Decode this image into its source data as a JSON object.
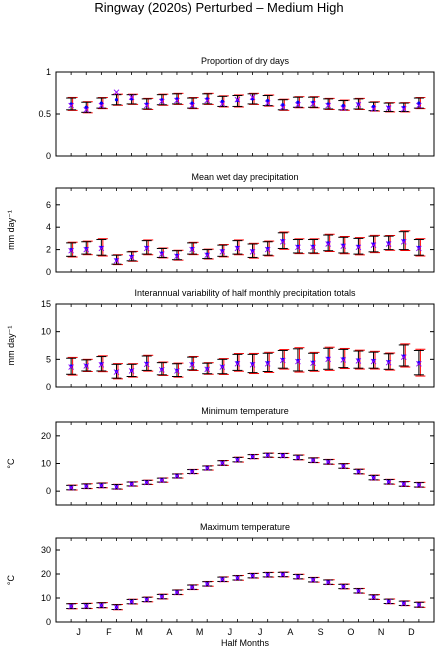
{
  "figure": {
    "title": "Ringway (2020s) Perturbed – Medium High"
  },
  "x_axis": {
    "label": "Half Months",
    "month_labels": [
      "J",
      "F",
      "M",
      "A",
      "M",
      "J",
      "J",
      "A",
      "S",
      "O",
      "N",
      "D"
    ]
  },
  "colors": {
    "observed": "#000000",
    "model": "#ff0000",
    "mean_marker": "#0000ff",
    "cross_marker": "#8b00ff"
  },
  "chart_data": [
    {
      "type": "errorbar",
      "title": "Proportion of dry days",
      "ylabel": "",
      "ylim": [
        0,
        1
      ],
      "yticks": [
        0,
        0.5,
        1
      ],
      "yticklabels": [
        "0",
        "0.5",
        "1"
      ],
      "x": [
        1,
        2,
        3,
        4,
        5,
        6,
        7,
        8,
        9,
        10,
        11,
        12,
        13,
        14,
        15,
        16,
        17,
        18,
        19,
        20,
        21,
        22,
        23,
        24
      ],
      "series": [
        {
          "values": [
            0.62,
            0.58,
            0.63,
            0.67,
            0.68,
            0.62,
            0.67,
            0.68,
            0.63,
            0.68,
            0.65,
            0.66,
            0.68,
            0.66,
            0.61,
            0.64,
            0.64,
            0.62,
            0.6,
            0.62,
            0.59,
            0.58,
            0.58,
            0.63
          ],
          "lower": [
            0.55,
            0.52,
            0.57,
            0.61,
            0.62,
            0.56,
            0.61,
            0.62,
            0.57,
            0.62,
            0.59,
            0.59,
            0.62,
            0.6,
            0.55,
            0.58,
            0.58,
            0.56,
            0.55,
            0.56,
            0.54,
            0.53,
            0.53,
            0.57
          ],
          "upper": [
            0.69,
            0.64,
            0.69,
            0.73,
            0.73,
            0.68,
            0.73,
            0.74,
            0.69,
            0.74,
            0.71,
            0.72,
            0.74,
            0.72,
            0.67,
            0.7,
            0.7,
            0.68,
            0.66,
            0.68,
            0.64,
            0.63,
            0.63,
            0.69
          ]
        }
      ],
      "crosses": [
        0.6,
        0.55,
        0.6,
        0.76,
        0.7,
        0.6,
        0.65,
        0.66,
        0.6,
        0.66,
        0.62,
        0.67,
        0.7,
        0.63,
        0.58,
        0.61,
        0.62,
        0.6,
        0.57,
        0.61,
        0.56,
        0.57,
        0.56,
        0.6
      ]
    },
    {
      "type": "errorbar",
      "title": "Mean wet day precipitation",
      "ylabel": "mm day⁻¹",
      "ylim": [
        0,
        7.5
      ],
      "yticks": [
        0,
        2,
        4,
        6
      ],
      "yticklabels": [
        "0",
        "2",
        "4",
        "6"
      ],
      "x": [
        1,
        2,
        3,
        4,
        5,
        6,
        7,
        8,
        9,
        10,
        11,
        12,
        13,
        14,
        15,
        16,
        17,
        18,
        19,
        20,
        21,
        22,
        23,
        24
      ],
      "series": [
        {
          "values": [
            2.0,
            2.1,
            2.2,
            1.1,
            1.4,
            2.2,
            1.7,
            1.5,
            2.1,
            1.6,
            1.9,
            2.2,
            1.9,
            2.1,
            2.8,
            2.3,
            2.3,
            2.6,
            2.4,
            2.3,
            2.5,
            2.6,
            2.8,
            2.2
          ],
          "lower": [
            1.4,
            1.6,
            1.5,
            0.7,
            1.0,
            1.6,
            1.3,
            1.1,
            1.6,
            1.2,
            1.4,
            1.6,
            1.3,
            1.5,
            2.1,
            1.7,
            1.7,
            1.9,
            1.7,
            1.6,
            1.8,
            2.0,
            2.0,
            1.5
          ],
          "upper": [
            2.6,
            2.7,
            2.9,
            1.5,
            1.8,
            2.8,
            2.1,
            1.9,
            2.6,
            2.0,
            2.4,
            2.8,
            2.5,
            2.7,
            3.5,
            2.9,
            2.9,
            3.3,
            3.1,
            3.0,
            3.2,
            3.2,
            3.6,
            2.9
          ]
        }
      ],
      "crosses": [
        1.9,
        2.0,
        2.1,
        1.0,
        1.3,
        2.1,
        1.6,
        1.4,
        2.0,
        1.5,
        1.8,
        2.1,
        1.8,
        2.0,
        2.7,
        2.2,
        2.2,
        2.5,
        2.3,
        2.2,
        2.4,
        2.5,
        2.7,
        2.1
      ]
    },
    {
      "type": "errorbar",
      "title": "Interannual variability of half monthly precipitation totals",
      "ylabel": "mm day⁻¹",
      "ylim": [
        0,
        15
      ],
      "yticks": [
        0,
        5,
        10,
        15
      ],
      "yticklabels": [
        "0",
        "5",
        "10",
        "15"
      ],
      "x": [
        1,
        2,
        3,
        4,
        5,
        6,
        7,
        8,
        9,
        10,
        11,
        12,
        13,
        14,
        15,
        16,
        17,
        18,
        19,
        20,
        21,
        22,
        23,
        24
      ],
      "series": [
        {
          "values": [
            3.8,
            3.9,
            4.2,
            2.8,
            3.0,
            4.3,
            3.2,
            3.0,
            4.2,
            3.3,
            3.7,
            4.4,
            4.2,
            4.4,
            5.0,
            4.8,
            4.5,
            5.2,
            5.1,
            4.9,
            4.8,
            4.6,
            5.6,
            4.4
          ],
          "lower": [
            2.3,
            2.9,
            2.9,
            1.6,
            1.9,
            3.0,
            2.2,
            1.9,
            3.1,
            2.4,
            2.4,
            3.0,
            2.6,
            2.8,
            3.4,
            2.9,
            3.0,
            3.2,
            3.5,
            3.4,
            3.4,
            3.2,
            3.8,
            2.2
          ],
          "upper": [
            5.2,
            4.9,
            5.5,
            4.1,
            4.1,
            5.6,
            4.4,
            4.2,
            5.4,
            4.3,
            5.0,
            5.9,
            5.9,
            6.1,
            6.6,
            6.9,
            6.1,
            7.0,
            6.8,
            6.5,
            6.3,
            6.0,
            7.6,
            6.6
          ]
        }
      ],
      "crosses": [
        3.6,
        3.8,
        4.0,
        2.7,
        2.9,
        4.1,
        3.1,
        2.9,
        4.0,
        3.2,
        3.6,
        4.2,
        4.0,
        4.2,
        4.8,
        4.6,
        4.3,
        5.0,
        4.9,
        4.7,
        4.6,
        4.4,
        5.4,
        4.2
      ]
    },
    {
      "type": "errorbar",
      "title": "Minimum temperature",
      "ylabel": "°C",
      "ylim": [
        -5,
        25
      ],
      "yticks": [
        0,
        10,
        20
      ],
      "yticklabels": [
        "0",
        "10",
        "20"
      ],
      "x": [
        1,
        2,
        3,
        4,
        5,
        6,
        7,
        8,
        9,
        10,
        11,
        12,
        13,
        14,
        15,
        16,
        17,
        18,
        19,
        20,
        21,
        22,
        23,
        24
      ],
      "series": [
        {
          "values": [
            1.3,
            1.8,
            2.1,
            1.6,
            2.6,
            3.2,
            4.0,
            5.5,
            7.1,
            8.4,
            10.2,
            11.4,
            12.5,
            13.0,
            12.9,
            12.2,
            11.2,
            10.6,
            9.1,
            7.1,
            4.9,
            3.4,
            2.6,
            2.3
          ],
          "lower": [
            0.5,
            1.0,
            1.3,
            0.8,
            1.9,
            2.5,
            3.3,
            4.8,
            6.4,
            7.7,
            9.4,
            10.6,
            11.8,
            12.3,
            12.2,
            11.4,
            10.4,
            9.8,
            8.3,
            6.3,
            4.1,
            2.6,
            1.8,
            1.5
          ],
          "upper": [
            2.1,
            2.6,
            2.9,
            2.4,
            3.3,
            3.9,
            4.7,
            6.2,
            7.8,
            9.1,
            11.0,
            12.2,
            13.2,
            13.7,
            13.6,
            13.0,
            12.0,
            11.4,
            9.9,
            7.9,
            5.7,
            4.2,
            3.4,
            3.1
          ]
        }
      ],
      "crosses": [
        1.2,
        1.7,
        2.0,
        1.5,
        2.5,
        3.1,
        3.9,
        5.4,
        7.0,
        8.3,
        10.1,
        11.3,
        12.4,
        12.9,
        12.8,
        12.1,
        11.1,
        10.5,
        9.0,
        7.0,
        4.8,
        3.3,
        2.5,
        2.2
      ]
    },
    {
      "type": "errorbar",
      "title": "Maximum temperature",
      "ylabel": "°C",
      "ylim": [
        0,
        35
      ],
      "yticks": [
        0,
        10,
        20,
        30
      ],
      "yticklabels": [
        "0",
        "10",
        "20",
        "30"
      ],
      "x": [
        1,
        2,
        3,
        4,
        5,
        6,
        7,
        8,
        9,
        10,
        11,
        12,
        13,
        14,
        15,
        16,
        17,
        18,
        19,
        20,
        21,
        22,
        23,
        24
      ],
      "series": [
        {
          "values": [
            6.6,
            6.7,
            7.0,
            6.2,
            8.5,
            9.4,
            10.6,
            12.4,
            14.5,
            15.9,
            17.8,
            18.4,
            19.3,
            19.7,
            19.8,
            18.9,
            17.6,
            16.6,
            14.8,
            13.0,
            10.4,
            8.6,
            7.8,
            7.2
          ],
          "lower": [
            5.6,
            5.7,
            6.0,
            5.2,
            7.6,
            8.5,
            9.7,
            11.5,
            13.6,
            15.0,
            16.9,
            17.5,
            18.4,
            18.8,
            18.9,
            18.0,
            16.7,
            15.7,
            13.9,
            12.1,
            9.5,
            7.7,
            6.9,
            6.2
          ],
          "upper": [
            7.6,
            7.7,
            8.0,
            7.2,
            9.4,
            10.3,
            11.5,
            13.3,
            15.4,
            16.8,
            18.7,
            19.3,
            20.2,
            20.6,
            20.7,
            19.8,
            18.5,
            17.5,
            15.7,
            13.9,
            11.3,
            9.5,
            8.7,
            8.2
          ]
        }
      ],
      "crosses": [
        6.5,
        6.6,
        6.9,
        6.1,
        8.4,
        9.3,
        10.5,
        12.3,
        14.4,
        15.8,
        17.7,
        18.3,
        19.2,
        19.6,
        19.7,
        18.8,
        17.5,
        16.5,
        14.7,
        12.9,
        10.3,
        8.5,
        7.7,
        7.1
      ]
    }
  ]
}
